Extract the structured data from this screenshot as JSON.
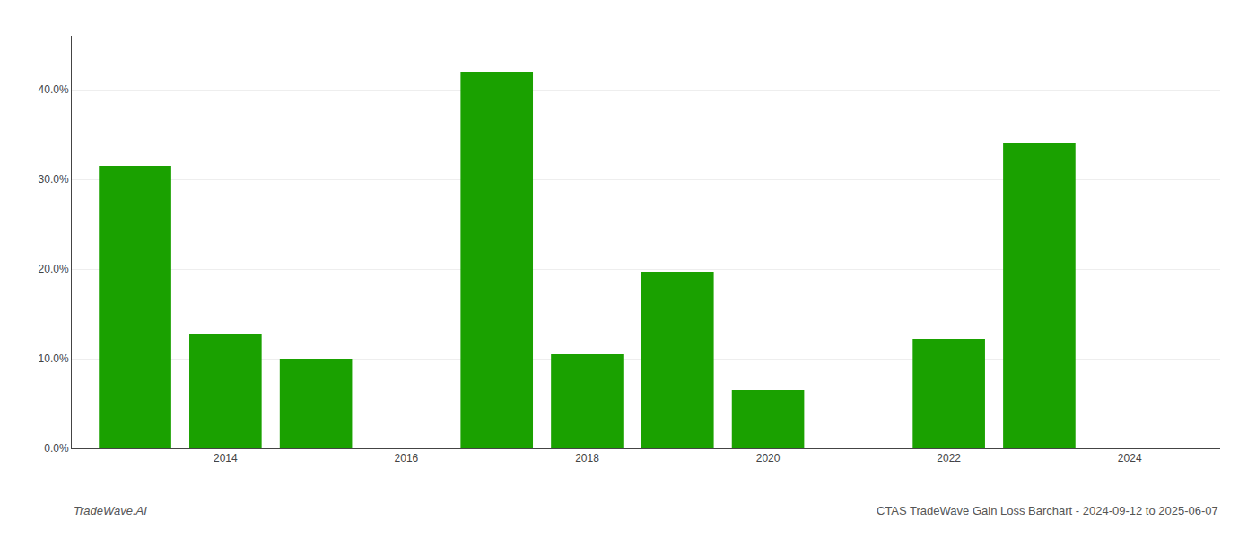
{
  "chart_data": {
    "type": "bar",
    "x": [
      2013,
      2014,
      2015,
      2017,
      2018,
      2019,
      2020,
      2022,
      2023
    ],
    "values": [
      0.315,
      0.127,
      0.1,
      0.42,
      0.105,
      0.197,
      0.065,
      0.122,
      0.34
    ],
    "color": "#1aa100",
    "xlim": [
      2012.3,
      2025.0
    ],
    "xticks": [
      2014,
      2016,
      2018,
      2020,
      2022,
      2024
    ],
    "ylim": [
      0,
      0.46
    ],
    "yticks": [
      {
        "value": 0.0,
        "label": "0.0%"
      },
      {
        "value": 0.1,
        "label": "10.0%"
      },
      {
        "value": 0.2,
        "label": "20.0%"
      },
      {
        "value": 0.3,
        "label": "30.0%"
      },
      {
        "value": 0.4,
        "label": "40.0%"
      }
    ],
    "grid": "y",
    "annotations": [
      "TradeWave.AI",
      "CTAS TradeWave Gain Loss Barchart - 2024-09-12 to 2025-06-07"
    ]
  }
}
